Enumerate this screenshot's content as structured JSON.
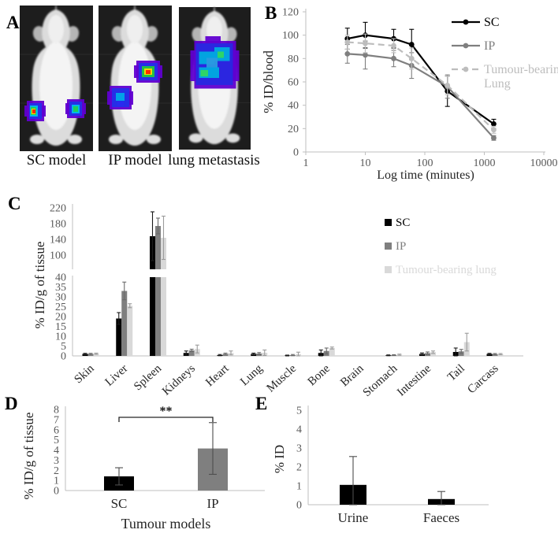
{
  "figure": {
    "panels": {
      "A": {
        "label": "A",
        "images": [
          {
            "caption": "SC model",
            "image_name": "mouse-sc-fluorescence"
          },
          {
            "caption": "IP model",
            "image_name": "mouse-ip-fluorescence"
          },
          {
            "caption": "lung metastasis",
            "image_name": "mouse-lung-metastasis-fluorescence"
          }
        ]
      },
      "B": {
        "label": "B"
      },
      "C": {
        "label": "C"
      },
      "D": {
        "label": "D"
      },
      "E": {
        "label": "E"
      }
    }
  },
  "colors": {
    "sc": "#000000",
    "ip": "#7f7f7f",
    "tumour_bearing_lung": "#c9c9c9",
    "tumour_bearing_lung_bar": "#d9d9d9",
    "axis": "#bfbfbf",
    "tick_text": "#595959",
    "label_text": "#262626"
  },
  "chart_data": [
    {
      "panel": "B",
      "type": "line",
      "x": [
        5,
        10,
        30,
        60,
        240,
        1440
      ],
      "x_scale": "log",
      "xticks": [
        1,
        10,
        100,
        1000,
        10000
      ],
      "yticks": [
        0,
        20,
        40,
        60,
        80,
        100,
        120
      ],
      "ylim": [
        0,
        120
      ],
      "xlabel": "Log time (minutes)",
      "ylabel": "% ID/blood",
      "grid": false,
      "legend_position": "right",
      "series": [
        {
          "name": "SC",
          "color": "#000000",
          "style": "solid",
          "values": [
            97,
            100,
            97,
            92,
            52,
            24
          ],
          "errors": [
            9,
            11,
            8,
            13,
            13,
            4
          ]
        },
        {
          "name": "IP",
          "color": "#7f7f7f",
          "style": "solid",
          "values": [
            84,
            83,
            80,
            74,
            56,
            12
          ],
          "errors": [
            8,
            12,
            7,
            11,
            10,
            2
          ]
        },
        {
          "name": "Tumour-bearing\nLung",
          "color": "#bdbdbd",
          "style": "dashed",
          "values": [
            94,
            93,
            91,
            80,
            57,
            19
          ],
          "errors": [
            6,
            8,
            6,
            9,
            8,
            3
          ]
        }
      ]
    },
    {
      "panel": "C",
      "type": "bar",
      "broken_axis": true,
      "upper_ticks": [
        100,
        140,
        180,
        220
      ],
      "lower_ticks": [
        0,
        5,
        10,
        15,
        20,
        25,
        30,
        35,
        40
      ],
      "ylabel": "% ID/g of tissue",
      "categories": [
        "Skin",
        "Liver",
        "Spleen",
        "Kidneys",
        "Heart",
        "Lung",
        "Muscle",
        "Bone",
        "Brain",
        "Stomach",
        "Intestine",
        "Tail",
        "Carcass"
      ],
      "series": [
        {
          "name": "SC",
          "color": "#000000",
          "values": [
            1.0,
            19,
            148,
            1.5,
            0.4,
            1.0,
            0.2,
            1.5,
            0.05,
            0.3,
            1.0,
            2.0,
            1.0
          ],
          "errors": [
            0.3,
            3,
            62,
            1.0,
            0.3,
            0.4,
            0.2,
            1.5,
            0.05,
            0.2,
            0.5,
            2.0,
            0.3
          ]
        },
        {
          "name": "IP",
          "color": "#7f7f7f",
          "values": [
            1.0,
            33,
            174,
            2.8,
            1.0,
            1.2,
            0.4,
            2.5,
            0.05,
            0.4,
            1.4,
            2.3,
            0.9
          ],
          "errors": [
            0.3,
            4.5,
            20,
            0.6,
            0.4,
            0.5,
            0.3,
            1.5,
            0.05,
            0.2,
            0.6,
            1.0,
            0.3
          ]
        },
        {
          "name": "Tumour-bearing lung",
          "color": "#d9d9d9",
          "values": [
            1.1,
            25.5,
            144,
            3.5,
            1.5,
            1.6,
            0.9,
            4.0,
            0.05,
            0.6,
            1.9,
            7.0,
            0.9
          ],
          "errors": [
            0.3,
            1.0,
            55,
            2.0,
            1.0,
            1.4,
            1.0,
            0.5,
            0.05,
            0.3,
            0.6,
            4.5,
            0.3
          ]
        }
      ]
    },
    {
      "panel": "D",
      "type": "bar",
      "categories": [
        "SC",
        "IP"
      ],
      "values": [
        1.4,
        4.15
      ],
      "errors": [
        0.85,
        2.55
      ],
      "colors": [
        "#000000",
        "#7f7f7f"
      ],
      "yticks": [
        0,
        1,
        2,
        3,
        4,
        5,
        6,
        7,
        8
      ],
      "ylim": [
        0,
        8
      ],
      "ylabel": "% ID/g of tissue",
      "xlabel": "Tumour models",
      "significance": "**"
    },
    {
      "panel": "E",
      "type": "bar",
      "categories": [
        "Urine",
        "Faeces"
      ],
      "values": [
        1.05,
        0.3
      ],
      "errors": [
        1.5,
        0.4
      ],
      "color": "#000000",
      "yticks": [
        0,
        1,
        2,
        3,
        4,
        5
      ],
      "ylim": [
        0,
        5
      ],
      "ylabel": "% ID"
    }
  ]
}
